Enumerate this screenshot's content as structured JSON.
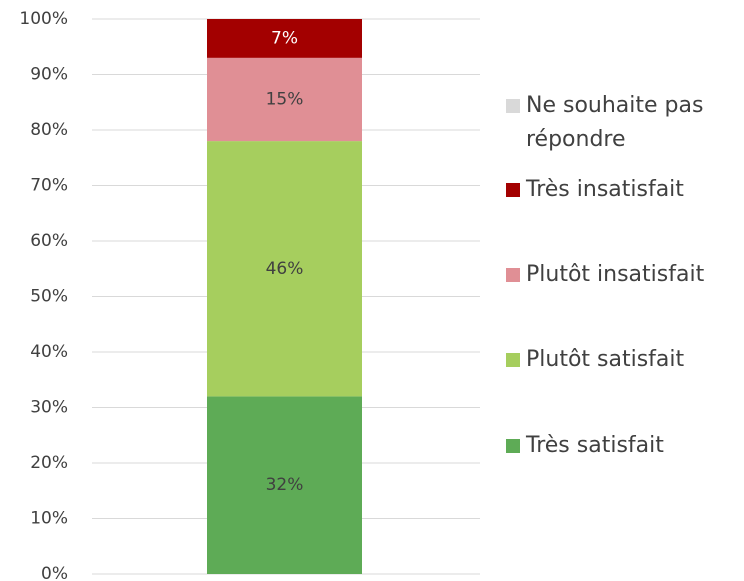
{
  "chart_data": {
    "type": "stacked_bar",
    "categories": [
      null
    ],
    "series": [
      {
        "name": "Très satisfait",
        "color": "#5eab56",
        "values": [
          32
        ],
        "value_labels": [
          "32%"
        ]
      },
      {
        "name": "Plutôt satisfait",
        "color": "#a6ce5e",
        "values": [
          46
        ],
        "value_labels": [
          "46%"
        ]
      },
      {
        "name": "Plutôt insatisfait",
        "color": "#e08f95",
        "values": [
          15
        ],
        "value_labels": [
          "15%"
        ]
      },
      {
        "name": "Très insatisfait",
        "color": "#a30000",
        "values": [
          7
        ],
        "value_labels": [
          "7%"
        ]
      },
      {
        "name": "Ne souhaite pas répondre",
        "color": "#d9d9d9",
        "values": [
          0
        ]
      }
    ],
    "ylim": [
      0,
      100
    ],
    "yticks": [
      {
        "value": 0,
        "label": "0%"
      },
      {
        "value": 10,
        "label": "10%"
      },
      {
        "value": 20,
        "label": "20%"
      },
      {
        "value": 30,
        "label": "30%"
      },
      {
        "value": 40,
        "label": "40%"
      },
      {
        "value": 50,
        "label": "50%"
      },
      {
        "value": 60,
        "label": "60%"
      },
      {
        "value": 70,
        "label": "70%"
      },
      {
        "value": 80,
        "label": "80%"
      },
      {
        "value": 90,
        "label": "90%"
      },
      {
        "value": 100,
        "label": "100%"
      }
    ],
    "grid": true,
    "legend": "right"
  }
}
